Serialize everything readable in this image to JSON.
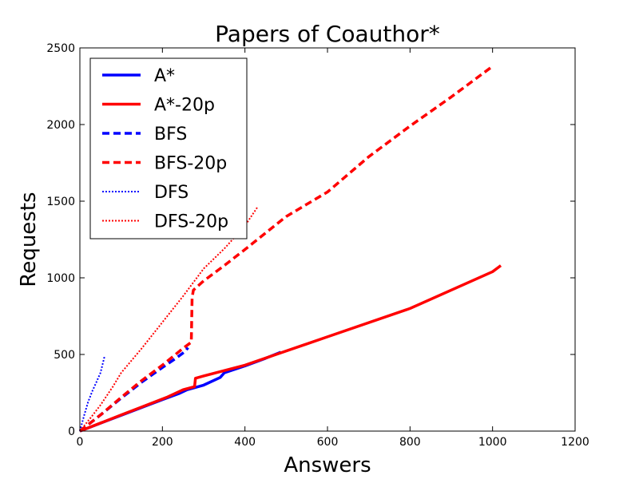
{
  "chart_data": {
    "type": "line",
    "title": "Papers of Coauthor*",
    "xlabel": "Answers",
    "ylabel": "Requests",
    "xlim": [
      0,
      1200
    ],
    "ylim": [
      0,
      2500
    ],
    "xticks": [
      0,
      200,
      400,
      600,
      800,
      1000,
      1200
    ],
    "yticks": [
      0,
      500,
      1000,
      1500,
      2000,
      2500
    ],
    "xtick_labels": [
      "0",
      "200",
      "400",
      "600",
      "800",
      "1000",
      "1200"
    ],
    "ytick_labels": [
      "0",
      "500",
      "1000",
      "1500",
      "2000",
      "2500"
    ],
    "grid": false,
    "legend_position": "top-left",
    "series": [
      {
        "name": "A*",
        "color": "#0000ff",
        "style": "solid",
        "x": [
          0,
          100,
          200,
          240,
          260,
          280,
          300,
          340,
          350,
          400,
          450,
          487
        ],
        "y": [
          0,
          103,
          205,
          245,
          270,
          285,
          300,
          350,
          380,
          425,
          475,
          515
        ]
      },
      {
        "name": "A*-20p",
        "color": "#ff0000",
        "style": "solid",
        "x": [
          0,
          100,
          210,
          250,
          278,
          280,
          300,
          400,
          600,
          800,
          1000,
          1020
        ],
        "y": [
          0,
          105,
          220,
          270,
          290,
          345,
          360,
          430,
          615,
          800,
          1040,
          1080
        ]
      },
      {
        "name": "BFS",
        "color": "#0000ff",
        "style": "dashed",
        "x": [
          0,
          50,
          100,
          150,
          200,
          230,
          255,
          262
        ],
        "y": [
          0,
          105,
          215,
          320,
          415,
          470,
          520,
          545
        ]
      },
      {
        "name": "BFS-20p",
        "color": "#ff0000",
        "style": "dashed",
        "x": [
          0,
          50,
          100,
          150,
          200,
          250,
          270,
          272,
          275,
          300,
          350,
          400,
          500,
          600,
          700,
          800,
          900,
          1000
        ],
        "y": [
          0,
          105,
          220,
          330,
          430,
          540,
          580,
          870,
          920,
          980,
          1080,
          1185,
          1400,
          1560,
          1790,
          1990,
          2180,
          2380
        ]
      },
      {
        "name": "DFS",
        "color": "#0000ff",
        "style": "dotted",
        "x": [
          0,
          10,
          20,
          30,
          40,
          50,
          60
        ],
        "y": [
          0,
          100,
          190,
          260,
          320,
          380,
          490
        ]
      },
      {
        "name": "DFS-20p",
        "color": "#ff0000",
        "style": "dotted",
        "x": [
          0,
          30,
          50,
          80,
          100,
          150,
          200,
          250,
          300,
          350,
          400,
          430
        ],
        "y": [
          0,
          100,
          170,
          290,
          380,
          540,
          710,
          880,
          1060,
          1190,
          1340,
          1460
        ]
      }
    ]
  }
}
